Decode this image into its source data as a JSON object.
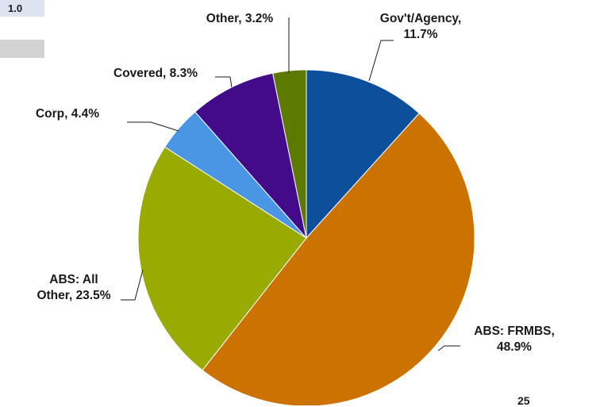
{
  "badge": "1.0",
  "page_number": "25",
  "chart_data": {
    "type": "pie",
    "title": "",
    "slices": [
      {
        "label": "Gov't/Agency",
        "value": 11.7,
        "color": "#0d4f9a",
        "text_lines": [
          "Gov't/Agency,",
          "11.7%"
        ]
      },
      {
        "label": "ABS: FRMBS",
        "value": 48.9,
        "color": "#cc7200",
        "text_lines": [
          "ABS: FRMBS,",
          "48.9%"
        ]
      },
      {
        "label": "ABS: All Other",
        "value": 23.5,
        "color": "#99aa00",
        "text_lines": [
          "ABS: All",
          "Other, 23.5%"
        ]
      },
      {
        "label": "Corp",
        "value": 4.4,
        "color": "#4a96e4",
        "text_lines": [
          "Corp, 4.4%"
        ]
      },
      {
        "label": "Covered",
        "value": 8.3,
        "color": "#430a8a",
        "text_lines": [
          "Covered, 8.3%"
        ]
      },
      {
        "label": "Other",
        "value": 3.2,
        "color": "#5c7a00",
        "text_lines": [
          "Other, 3.2%"
        ]
      }
    ]
  }
}
